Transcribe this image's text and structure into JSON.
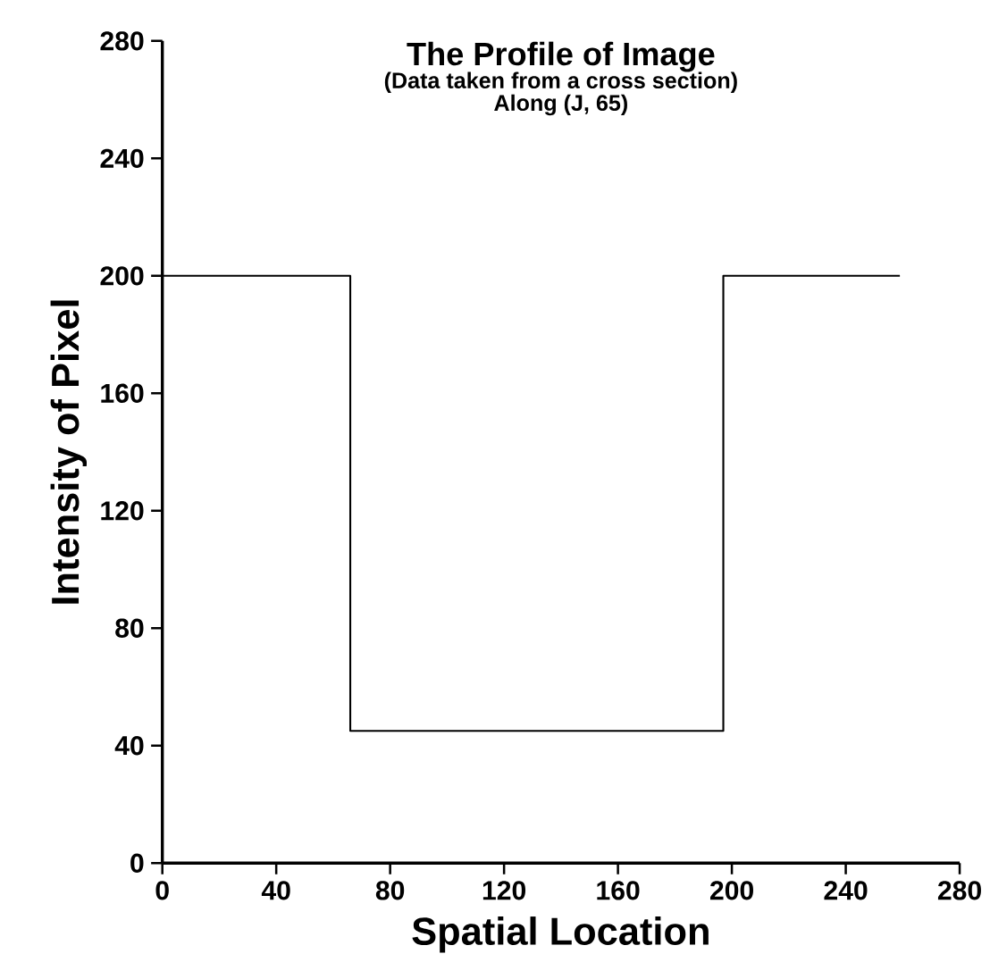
{
  "chart_data": {
    "type": "line",
    "title": "The Profile of Image",
    "subtitle": "(Data taken from a cross section)",
    "annotations": [
      "Along (J, 65)"
    ],
    "xlabel": "Spatial Location",
    "ylabel": "Intensity of Pixel",
    "x": [
      0,
      66,
      66,
      197,
      197,
      259
    ],
    "series": [
      {
        "color": "#000000",
        "values": [
          200,
          200,
          45,
          45,
          200,
          200
        ]
      }
    ],
    "xlim": [
      0,
      280
    ],
    "ylim": [
      0,
      280
    ],
    "xticks": [
      0,
      40,
      80,
      120,
      160,
      200,
      240,
      280
    ],
    "yticks": [
      0,
      40,
      80,
      120,
      160,
      200,
      240,
      280
    ],
    "grid": false,
    "marker": "none",
    "line_style": "solid"
  }
}
